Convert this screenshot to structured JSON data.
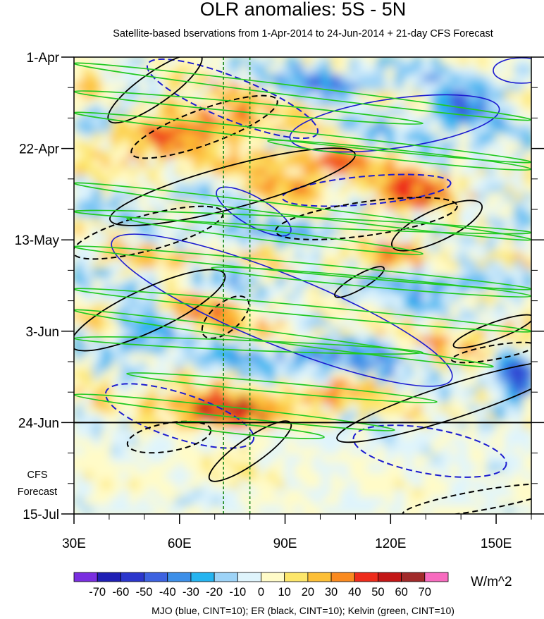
{
  "chart_data": {
    "type": "heatmap",
    "title": "OLR anomalies: 5S - 5N",
    "subtitle": "Satellite-based bservations from 1-Apr-2014 to 24-Jun-2014 + 21-day CFS Forecast",
    "x_axis": {
      "ticks": [
        "30E",
        "60E",
        "90E",
        "120E",
        "150E"
      ],
      "tick_values": [
        30,
        60,
        90,
        120,
        150
      ],
      "range": [
        30,
        160
      ]
    },
    "y_axis": {
      "ticks": [
        "1-Apr",
        "22-Apr",
        "13-May",
        "3-Jun",
        "24-Jun",
        "15-Jul"
      ],
      "tick_values": [
        "2014-04-01",
        "2014-04-22",
        "2014-05-13",
        "2014-06-03",
        "2014-06-24",
        "2014-07-15"
      ],
      "range": [
        "2014-04-01",
        "2014-07-15"
      ],
      "direction": "downward"
    },
    "observation_end": "24-Jun",
    "forecast_label_lines": [
      "CFS",
      "Forecast"
    ],
    "colorbar": {
      "labels": [
        "-70",
        "-60",
        "-50",
        "-40",
        "-30",
        "-20",
        "-10",
        "0",
        "10",
        "20",
        "30",
        "40",
        "50",
        "60",
        "70"
      ],
      "colors": [
        "#7a2ee0",
        "#1f1fb4",
        "#2b36cc",
        "#3d62e0",
        "#3d8fe8",
        "#25b4f0",
        "#9dd3f7",
        "#dff4fc",
        "#fffbc8",
        "#fde66a",
        "#fdbf37",
        "#fa8a1f",
        "#ee2b1b",
        "#c31616",
        "#a12a2a",
        "#f86bbf"
      ],
      "units": "W/m^2"
    },
    "reference_lines_lon": [
      72.5,
      80
    ],
    "overlays": {
      "legend_text": "MJO (blue, CINT=10); ER (black, CINT=10); Kelvin (green, CINT=10)",
      "mjo_color": "#1c1cd0",
      "er_color": "#000000",
      "kelvin_color": "#22c922"
    }
  }
}
